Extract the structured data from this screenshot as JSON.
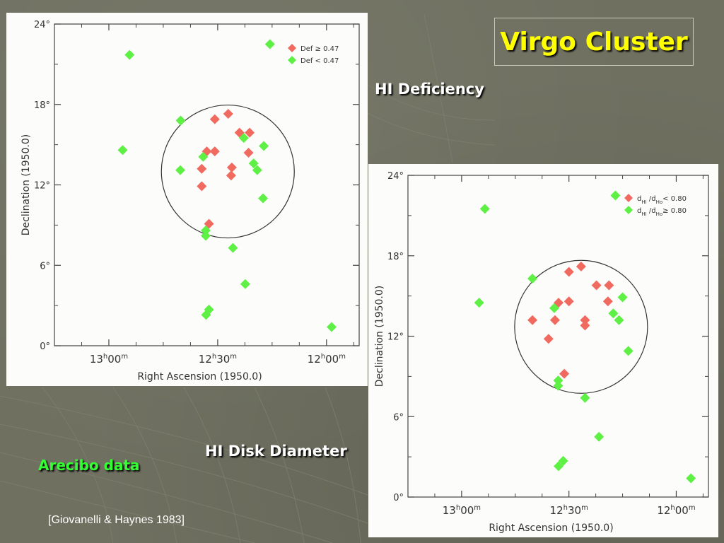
{
  "slide": {
    "title": "Virgo Cluster",
    "caption_top": "HI Deficiency",
    "caption_bottom": "HI Disk Diameter",
    "caption_arecibo": "Arecibo data",
    "citation": "[Giovanelli & Haynes 1983]"
  },
  "colors": {
    "red_marker": "#f06a60",
    "green_marker": "#5ef044",
    "title": "#ffff00"
  },
  "chart_data": [
    {
      "type": "scatter",
      "xlabel": "Right Ascension (1950.0)",
      "ylabel": "Declination (1950.0)",
      "xlim": [
        795,
        711
      ],
      "ylim": [
        0,
        24
      ],
      "x_ticks": [
        {
          "value": 780,
          "label_h": "13",
          "label_m": "00"
        },
        {
          "value": 750,
          "label_h": "12",
          "label_m": "30"
        },
        {
          "value": 720,
          "label_h": "12",
          "label_m": "00"
        }
      ],
      "y_ticks": [
        {
          "value": 0,
          "label": "0°"
        },
        {
          "value": 6,
          "label": "6°"
        },
        {
          "value": 12,
          "label": "12°"
        },
        {
          "value": 18,
          "label": "18°"
        },
        {
          "value": 24,
          "label": "24°"
        }
      ],
      "circle": {
        "ra": 747.2,
        "dec": 13.0,
        "radius_deg": 10.2
      },
      "legend_position": "top-right",
      "series": [
        {
          "name": "Def ≥ 0.47",
          "color": "#f06a60",
          "points": [
            [
              747.1,
              17.3
            ],
            [
              750.8,
              16.9
            ],
            [
              744.0,
              15.9
            ],
            [
              741.2,
              15.9
            ],
            [
              753.0,
              14.5
            ],
            [
              750.8,
              14.5
            ],
            [
              741.5,
              14.4
            ],
            [
              754.4,
              13.2
            ],
            [
              746.1,
              13.3
            ],
            [
              746.3,
              12.7
            ],
            [
              754.4,
              11.9
            ],
            [
              752.4,
              9.1
            ]
          ]
        },
        {
          "name": "Def < 0.47",
          "color": "#5ef044",
          "points": [
            [
              774.3,
              21.7
            ],
            [
              735.6,
              22.5
            ],
            [
              737.5,
              11.0
            ],
            [
              760.2,
              16.8
            ],
            [
              737.3,
              14.9
            ],
            [
              742.8,
              15.5
            ],
            [
              754.0,
              14.1
            ],
            [
              740.1,
              13.6
            ],
            [
              739.1,
              13.1
            ],
            [
              760.3,
              13.1
            ],
            [
              753.3,
              8.6
            ],
            [
              753.3,
              8.2
            ],
            [
              745.8,
              7.3
            ],
            [
              742.4,
              4.6
            ],
            [
              753.2,
              2.3
            ],
            [
              752.4,
              2.7
            ],
            [
              776.2,
              14.6
            ],
            [
              718.6,
              1.4
            ]
          ]
        }
      ]
    },
    {
      "type": "scatter",
      "xlabel": "Right Ascension (1950.0)",
      "ylabel": "Declination (1950.0)",
      "xlim": [
        795,
        711
      ],
      "ylim": [
        0,
        24
      ],
      "x_ticks": [
        {
          "value": 780,
          "label_h": "13",
          "label_m": "00"
        },
        {
          "value": 750,
          "label_h": "12",
          "label_m": "30"
        },
        {
          "value": 720,
          "label_h": "12",
          "label_m": "00"
        }
      ],
      "y_ticks": [
        {
          "value": 0,
          "label": "0°"
        },
        {
          "value": 6,
          "label": "6°"
        },
        {
          "value": 12,
          "label": "12°"
        },
        {
          "value": 18,
          "label": "18°"
        },
        {
          "value": 24,
          "label": "24°"
        }
      ],
      "circle": {
        "ra": 746.6,
        "dec": 12.7,
        "radius_deg": 10.2
      },
      "legend_position": "top-right",
      "series": [
        {
          "name": "dHI/dHo < 0.80",
          "label_html": "d<tspan baseline-shift=\"sub\" font-size=\"7\">HI</tspan> /d<tspan baseline-shift=\"sub\" font-size=\"7\">Ho</tspan>&lt; 0.80",
          "color": "#f06a60",
          "points": [
            [
              746.6,
              17.2
            ],
            [
              750.0,
              16.8
            ],
            [
              742.3,
              15.8
            ],
            [
              738.8,
              15.8
            ],
            [
              752.9,
              14.5
            ],
            [
              750.0,
              14.6
            ],
            [
              739.1,
              14.6
            ],
            [
              760.2,
              13.2
            ],
            [
              753.9,
              13.2
            ],
            [
              745.5,
              13.2
            ],
            [
              745.5,
              12.8
            ],
            [
              755.7,
              11.8
            ],
            [
              751.3,
              9.2
            ]
          ]
        },
        {
          "name": "dHI/dHo ≥ 0.80",
          "label_html": "d<tspan baseline-shift=\"sub\" font-size=\"7\">HI</tspan> /d<tspan baseline-shift=\"sub\" font-size=\"7\">Ho</tspan>≥ 0.80",
          "color": "#5ef044",
          "points": [
            [
              773.5,
              21.5
            ],
            [
              737.0,
              22.5
            ],
            [
              733.4,
              10.9
            ],
            [
              760.2,
              16.3
            ],
            [
              735.0,
              14.9
            ],
            [
              737.6,
              13.7
            ],
            [
              736.0,
              13.2
            ],
            [
              754.1,
              14.1
            ],
            [
              753.0,
              8.7
            ],
            [
              753.0,
              8.3
            ],
            [
              745.5,
              7.4
            ],
            [
              741.6,
              4.5
            ],
            [
              752.9,
              2.3
            ],
            [
              751.6,
              2.7
            ],
            [
              775.1,
              14.5
            ],
            [
              715.9,
              1.4
            ]
          ]
        }
      ]
    }
  ]
}
